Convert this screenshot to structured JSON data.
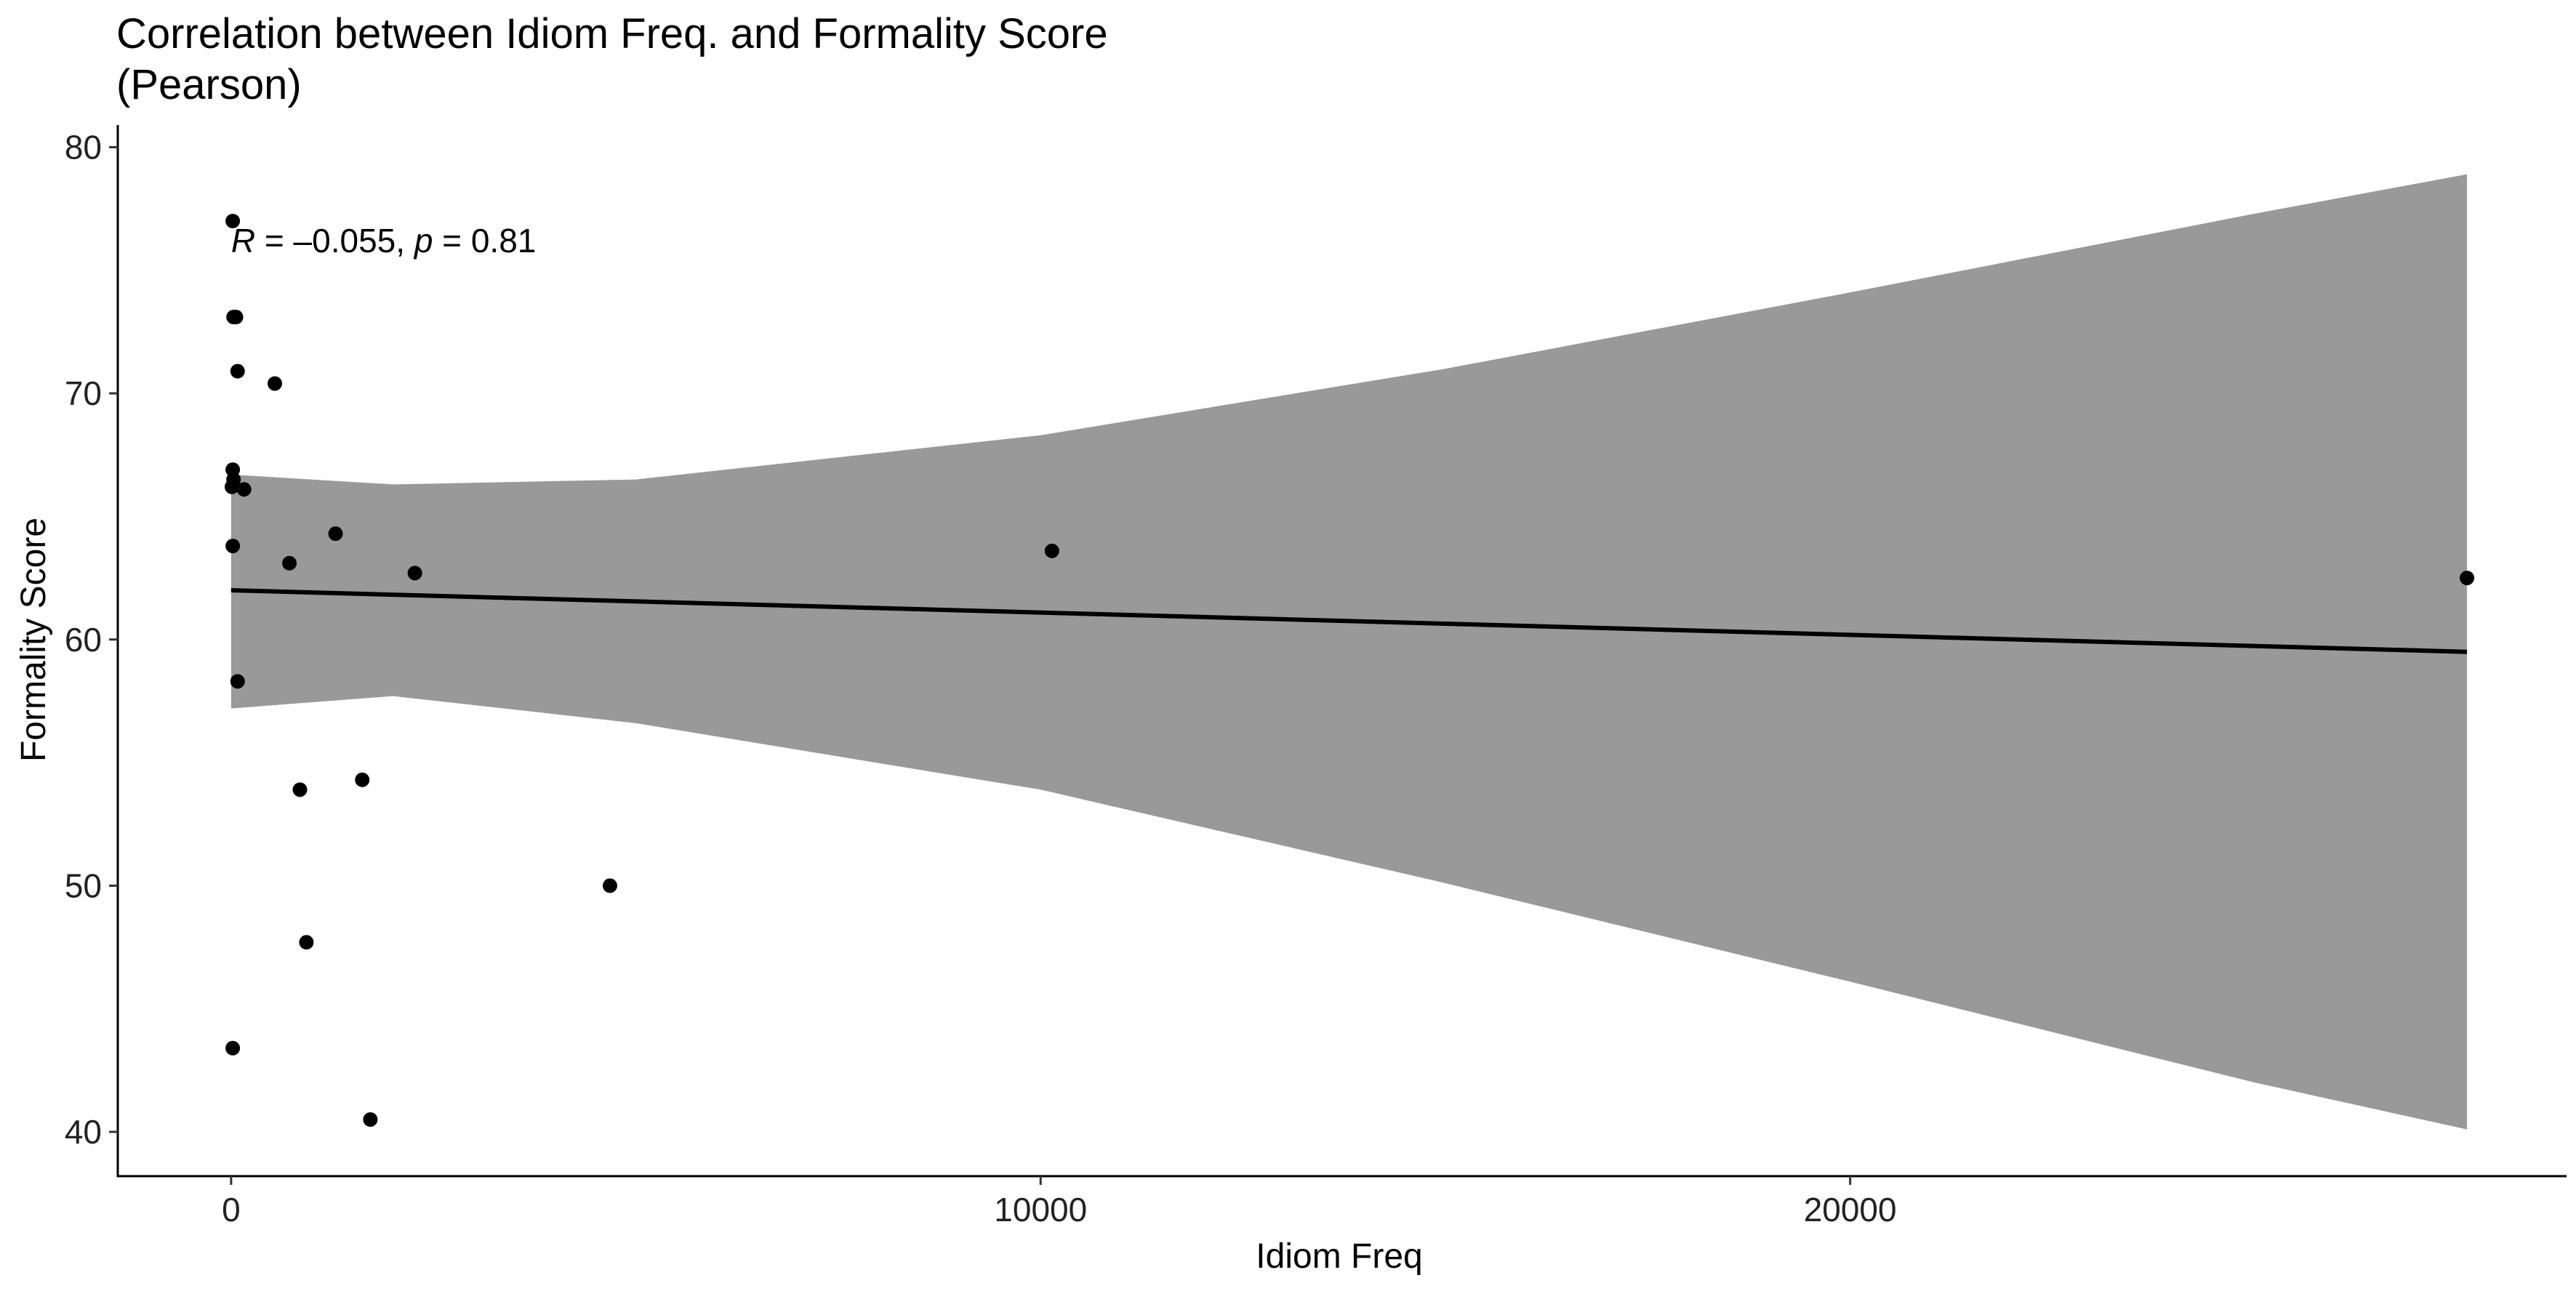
{
  "chart_data": {
    "type": "scatter",
    "title_lines": [
      "Correlation between Idiom Freq. and Formality Score",
      "(Pearson)"
    ],
    "xlabel": "Idiom Freq",
    "ylabel": "Formality Score",
    "xlim": [
      -1400,
      28850
    ],
    "ylim": [
      38.2,
      80.9
    ],
    "x_ticks": [
      0,
      10000,
      20000
    ],
    "y_ticks": [
      40,
      50,
      60,
      70,
      80
    ],
    "grid": false,
    "annotation": {
      "r_symbol": "R",
      "r_equals": " = ",
      "r_minus": "–",
      "r_value": "0.055, ",
      "p_symbol": "p",
      "p_rest": " = 0.81",
      "at_x": 0,
      "at_y": 76.2
    },
    "points": {
      "x": [
        20,
        30,
        60,
        80,
        540,
        20,
        30,
        10,
        160,
        20,
        1290,
        720,
        2270,
        10140,
        27620,
        80,
        850,
        1620,
        4680,
        930,
        20,
        1720
      ],
      "y": [
        77.0,
        73.1,
        73.1,
        70.9,
        70.4,
        66.9,
        66.5,
        66.2,
        66.1,
        63.8,
        64.3,
        63.1,
        62.7,
        63.6,
        62.5,
        58.3,
        53.9,
        54.3,
        50.0,
        47.7,
        43.4,
        40.5
      ],
      "color": "#000000"
    },
    "regression": {
      "x": [
        0,
        27620
      ],
      "y": [
        62.0,
        59.5
      ],
      "color": "#000000"
    },
    "confidence_band": {
      "x": [
        0,
        2000,
        5000,
        10000,
        15000,
        20000,
        25000,
        27620
      ],
      "upper": [
        66.7,
        66.3,
        66.5,
        68.3,
        71.0,
        74.1,
        77.3,
        78.9
      ],
      "lower": [
        57.2,
        57.7,
        56.6,
        53.9,
        50.1,
        46.1,
        42.0,
        40.1
      ],
      "color": "#999999"
    }
  }
}
